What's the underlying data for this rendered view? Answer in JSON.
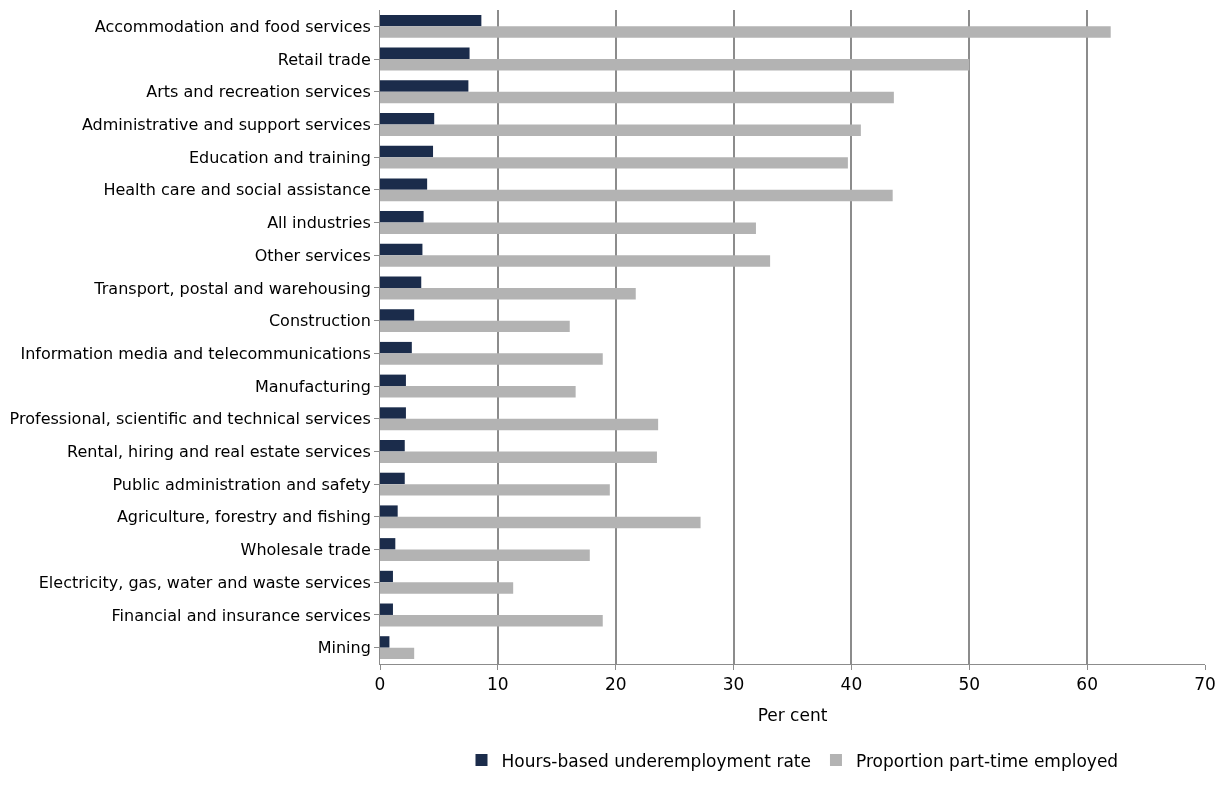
{
  "chart_data": {
    "type": "bar",
    "orientation": "horizontal",
    "xlabel": "Per cent",
    "categories": [
      "Accommodation and food services",
      "Retail trade",
      "Arts and recreation services",
      "Administrative and support services",
      "Education and training",
      "Health care and social assistance",
      "All industries",
      "Other services",
      "Transport, postal and warehousing",
      "Construction",
      "Information media and telecommunications",
      "Manufacturing",
      "Professional, scientific and technical services",
      "Rental, hiring and real estate services",
      "Public administration and safety",
      "Agriculture, forestry and fishing",
      "Wholesale trade",
      "Electricity, gas, water and waste services",
      "Financial and insurance services",
      "Mining"
    ],
    "series": [
      {
        "name": "Hours-based underemployment rate",
        "color": "#1b2c4b",
        "values": [
          8.6,
          7.6,
          7.5,
          4.6,
          4.5,
          4.0,
          3.7,
          3.6,
          3.5,
          2.9,
          2.7,
          2.2,
          2.2,
          2.1,
          2.1,
          1.5,
          1.3,
          1.1,
          1.1,
          0.8
        ]
      },
      {
        "name": "Proportion part-time employed",
        "color": "#b3b3b3",
        "values": [
          62.0,
          50.0,
          43.6,
          40.8,
          39.7,
          43.5,
          31.9,
          33.1,
          21.7,
          16.1,
          18.9,
          16.6,
          23.6,
          23.5,
          19.5,
          27.2,
          17.8,
          11.3,
          18.9,
          2.9
        ]
      }
    ],
    "xlim": [
      0,
      70
    ],
    "xticks": [
      0,
      10,
      20,
      30,
      40,
      50,
      60,
      70
    ],
    "grid": "x",
    "legend": "bottom"
  }
}
